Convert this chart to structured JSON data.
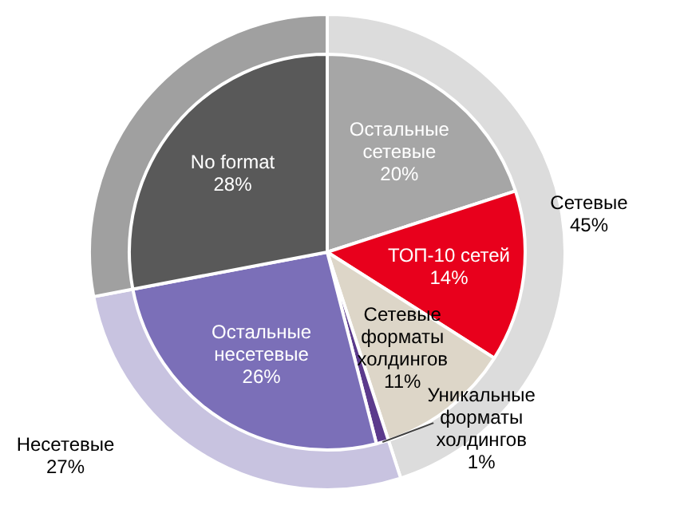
{
  "chart_data": [
    {
      "type": "pie",
      "value_labels": [
        "20%",
        "14%",
        "11%",
        "1%",
        "26%",
        "28%"
      ],
      "categories": [
        "Остальные сетевые",
        "ТОП-10 сетей",
        "Сетевые форматы холдингов",
        "Уникальные форматы холдингов",
        "Остальные несетевые",
        "No format"
      ],
      "values": [
        20,
        14,
        11,
        1,
        26,
        28
      ],
      "colors": [
        "#a6a6a6",
        "#e8001c",
        "#ddd6c8",
        "#5b3a8c",
        "#7b6fb8",
        "#595959"
      ]
    },
    {
      "type": "donut",
      "value_labels": [
        "45%",
        "27%",
        null
      ],
      "categories": [
        "Сетевые",
        "Несетевые",
        null
      ],
      "values": [
        45,
        27,
        28
      ],
      "colors": [
        "#dcdcdc",
        "#c8c3e0",
        "#a0a0a0"
      ]
    }
  ]
}
